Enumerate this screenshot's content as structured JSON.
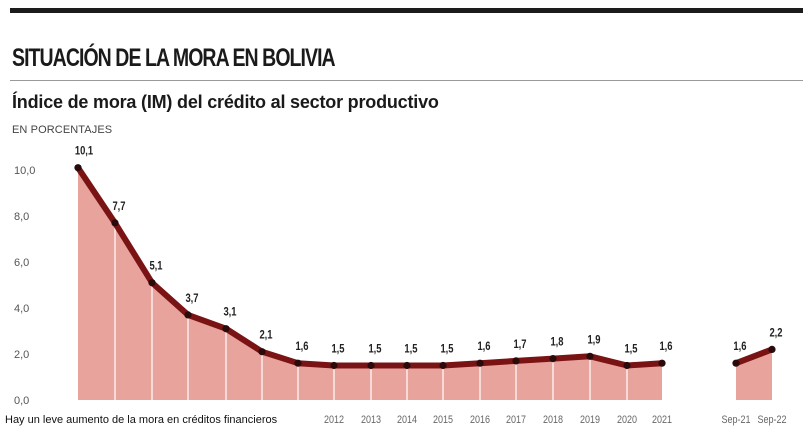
{
  "header": {
    "title": "SITUACIÓN DE LA MORA EN BOLIVIA",
    "subtitle": "Índice de mora (IM) del crédito al sector productivo",
    "unit": "EN PORCENTAJES"
  },
  "caption": "Hay un leve aumento de la mora en créditos financieros",
  "colors": {
    "line": "#7a1414",
    "fill": "#e8a39d",
    "divider": "#ffffff",
    "marker": "#2a0a0a"
  },
  "chart_data": {
    "type": "area",
    "ylim": [
      0,
      10
    ],
    "yticks": [
      "10,0",
      "8,0",
      "6,0",
      "4,0",
      "2,0",
      "0,0"
    ],
    "ytick_values": [
      10,
      8,
      6,
      4,
      2,
      0
    ],
    "grid": false,
    "series": [
      {
        "x": [
          "",
          "",
          "",
          "",
          "",
          "",
          "",
          "2012",
          "2013",
          "2014",
          "2015",
          "2016",
          "2017",
          "2018",
          "2019",
          "2020",
          "2021"
        ],
        "values": [
          10.1,
          7.7,
          5.1,
          3.7,
          3.1,
          2.1,
          1.6,
          1.5,
          1.5,
          1.5,
          1.5,
          1.6,
          1.7,
          1.8,
          1.9,
          1.5,
          1.6
        ],
        "labels": [
          "10,1",
          "7,7",
          "5,1",
          "3,7",
          "3,1",
          "2,1",
          "1,6",
          "1,5",
          "1,5",
          "1,5",
          "1,5",
          "1,6",
          "1,7",
          "1,8",
          "1,9",
          "1,5",
          "1,6"
        ]
      },
      {
        "x": [
          "Sep-21",
          "Sep-22"
        ],
        "values": [
          1.6,
          2.2
        ],
        "labels": [
          "1,6",
          "2,2"
        ]
      }
    ]
  }
}
